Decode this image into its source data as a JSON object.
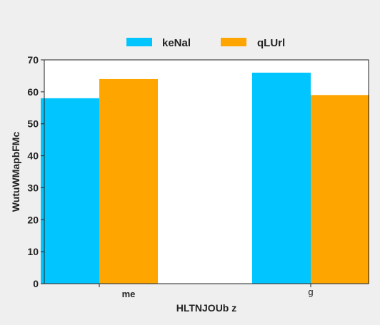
{
  "chart_data": {
    "type": "bar",
    "categories": [
      "me",
      "g"
    ],
    "series": [
      {
        "name": "keNal",
        "values": [
          58,
          66
        ],
        "color": "#00c5ff"
      },
      {
        "name": "qLUrl",
        "values": [
          64,
          59
        ],
        "color": "#ffa500"
      }
    ],
    "title": "",
    "xlabel": "HLTNJOUb  z",
    "ylabel": "WutuWMapbFMc",
    "ylim": [
      0,
      70
    ],
    "yticks": [
      0,
      10,
      20,
      30,
      40,
      50,
      60,
      70
    ],
    "grid": false,
    "legend_position": "top-center"
  }
}
